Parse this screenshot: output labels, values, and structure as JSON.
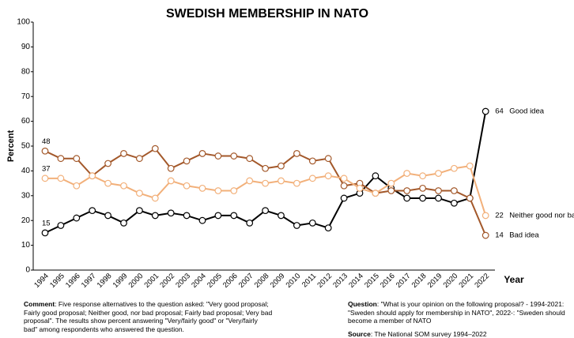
{
  "chart_data": {
    "type": "line",
    "title": "SWEDISH MEMBERSHIP IN NATO",
    "ylabel": "Percent",
    "xlabel": "Year",
    "categories": [
      "1994",
      "1995",
      "1996",
      "1997",
      "1998",
      "1999",
      "2000",
      "2001",
      "2002",
      "2003",
      "2004",
      "2005",
      "2006",
      "2007",
      "2008",
      "2009",
      "2010",
      "2011",
      "2012",
      "2013",
      "2014",
      "2015",
      "2016",
      "2017",
      "2018",
      "2019",
      "2020",
      "2021",
      "2022"
    ],
    "series": [
      {
        "name": "Good idea",
        "color": "#000000",
        "values": [
          15,
          18,
          21,
          24,
          22,
          19,
          24,
          22,
          23,
          22,
          20,
          22,
          22,
          19,
          24,
          22,
          18,
          19,
          17,
          29,
          31,
          38,
          33,
          29,
          29,
          29,
          27,
          29,
          64
        ]
      },
      {
        "name": "Bad idea",
        "color": "#a3582a",
        "values": [
          48,
          45,
          45,
          38,
          43,
          47,
          45,
          49,
          41,
          44,
          47,
          46,
          46,
          45,
          41,
          42,
          47,
          44,
          45,
          34,
          35,
          31,
          32,
          32,
          33,
          32,
          32,
          29,
          14
        ]
      },
      {
        "name": "Neither good nor bad",
        "color": "#f2b07a",
        "values": [
          37,
          37,
          34,
          38,
          35,
          34,
          31,
          29,
          36,
          34,
          33,
          32,
          32,
          36,
          35,
          36,
          35,
          37,
          38,
          37,
          33,
          31,
          35,
          39,
          38,
          39,
          41,
          42,
          22
        ]
      }
    ],
    "ylim": [
      0,
      100
    ],
    "yticks": [
      0,
      10,
      20,
      30,
      40,
      50,
      60,
      70,
      80,
      90,
      100
    ],
    "grid": false,
    "annotations": {
      "comment": {
        "label": "Comment",
        "text": ": Five response alternatives to the question asked: \"Very good proposal; Fairly good proposal; Neither good, nor bad proposal; Fairly bad proposal; Very bad proposal\". The results show percent answering \"Very/fairly good\" or \"Very/fairly bad\" among respondents who answered the question."
      },
      "question": {
        "label": "Question",
        "text": ": \"What is your opinion on the following proposal? - 1994-2021: \"Sweden should apply for membership in NATO\", 2022-: \"Sweden should become a member of NATO"
      },
      "source": {
        "label": "Source",
        "text": ": The National SOM survey 1994–2022"
      }
    }
  }
}
